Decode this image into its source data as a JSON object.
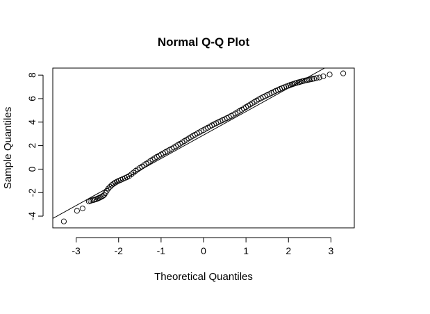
{
  "chart_data": {
    "type": "scatter",
    "title": "Normal Q-Q Plot",
    "xlabel": "Theoretical Quantiles",
    "ylabel": "Sample Quantiles",
    "xlim": [
      -3.55,
      3.55
    ],
    "ylim": [
      -5.0,
      8.6
    ],
    "x_ticks": [
      -3,
      -2,
      -1,
      0,
      1,
      2,
      3
    ],
    "y_ticks": [
      -4,
      -2,
      0,
      2,
      4,
      6,
      8
    ],
    "x_tick_labels": [
      "-3",
      "-2",
      "-1",
      "0",
      "1",
      "2",
      "3"
    ],
    "y_tick_labels": [
      "-4",
      "-2",
      "0",
      "2",
      "4",
      "6",
      "8"
    ],
    "grid": false,
    "legend": "none",
    "reference_line": {
      "slope": 2.0,
      "intercept": 2.9
    },
    "series": [
      {
        "marker": "open-circle",
        "color": "#000000",
        "x": [
          -3.29,
          -2.98,
          -2.85,
          -2.7,
          -2.66,
          -2.62,
          -2.58,
          -2.55,
          -2.52,
          -2.49,
          -2.46,
          -2.43,
          -2.4,
          -2.37,
          -2.34,
          -2.31,
          -2.28,
          -2.24,
          -2.2,
          -2.16,
          -2.12,
          -2.08,
          -2.04,
          -2.0,
          -1.95,
          -1.9,
          -1.85,
          -1.8,
          -1.75,
          -1.7,
          -1.65,
          -1.6,
          -1.55,
          -1.5,
          -1.45,
          -1.4,
          -1.35,
          -1.3,
          -1.25,
          -1.2,
          -1.15,
          -1.1,
          -1.05,
          -1.0,
          -0.95,
          -0.9,
          -0.85,
          -0.8,
          -0.75,
          -0.7,
          -0.65,
          -0.6,
          -0.55,
          -0.5,
          -0.45,
          -0.4,
          -0.35,
          -0.3,
          -0.25,
          -0.2,
          -0.15,
          -0.1,
          -0.05,
          0.0,
          0.05,
          0.1,
          0.15,
          0.2,
          0.25,
          0.3,
          0.35,
          0.4,
          0.45,
          0.5,
          0.55,
          0.6,
          0.65,
          0.7,
          0.75,
          0.8,
          0.85,
          0.9,
          0.95,
          1.0,
          1.05,
          1.1,
          1.15,
          1.2,
          1.25,
          1.3,
          1.35,
          1.4,
          1.45,
          1.5,
          1.55,
          1.6,
          1.65,
          1.7,
          1.75,
          1.8,
          1.85,
          1.9,
          1.95,
          2.0,
          2.04,
          2.08,
          2.12,
          2.16,
          2.2,
          2.24,
          2.28,
          2.32,
          2.36,
          2.4,
          2.44,
          2.48,
          2.52,
          2.56,
          2.6,
          2.66,
          2.73,
          2.82,
          2.97,
          3.29
        ],
        "y": [
          -4.45,
          -3.55,
          -3.35,
          -2.75,
          -2.7,
          -2.65,
          -2.62,
          -2.58,
          -2.55,
          -2.5,
          -2.45,
          -2.4,
          -2.35,
          -2.28,
          -2.2,
          -2.05,
          -1.85,
          -1.65,
          -1.5,
          -1.35,
          -1.25,
          -1.15,
          -1.07,
          -1.0,
          -0.92,
          -0.84,
          -0.76,
          -0.68,
          -0.58,
          -0.45,
          -0.3,
          -0.15,
          -0.02,
          0.1,
          0.22,
          0.34,
          0.46,
          0.58,
          0.7,
          0.82,
          0.93,
          1.04,
          1.14,
          1.24,
          1.34,
          1.44,
          1.54,
          1.64,
          1.74,
          1.84,
          1.95,
          2.06,
          2.17,
          2.28,
          2.39,
          2.5,
          2.61,
          2.72,
          2.83,
          2.93,
          3.03,
          3.13,
          3.23,
          3.33,
          3.43,
          3.53,
          3.63,
          3.73,
          3.82,
          3.91,
          4.0,
          4.08,
          4.17,
          4.25,
          4.34,
          4.43,
          4.53,
          4.63,
          4.73,
          4.84,
          4.95,
          5.06,
          5.17,
          5.28,
          5.39,
          5.5,
          5.61,
          5.72,
          5.83,
          5.93,
          6.03,
          6.12,
          6.21,
          6.3,
          6.39,
          6.48,
          6.57,
          6.66,
          6.74,
          6.82,
          6.9,
          6.97,
          7.04,
          7.1,
          7.16,
          7.21,
          7.26,
          7.31,
          7.35,
          7.39,
          7.43,
          7.47,
          7.51,
          7.55,
          7.58,
          7.61,
          7.64,
          7.67,
          7.7,
          7.75,
          7.8,
          7.9,
          8.05,
          8.15
        ]
      }
    ]
  }
}
